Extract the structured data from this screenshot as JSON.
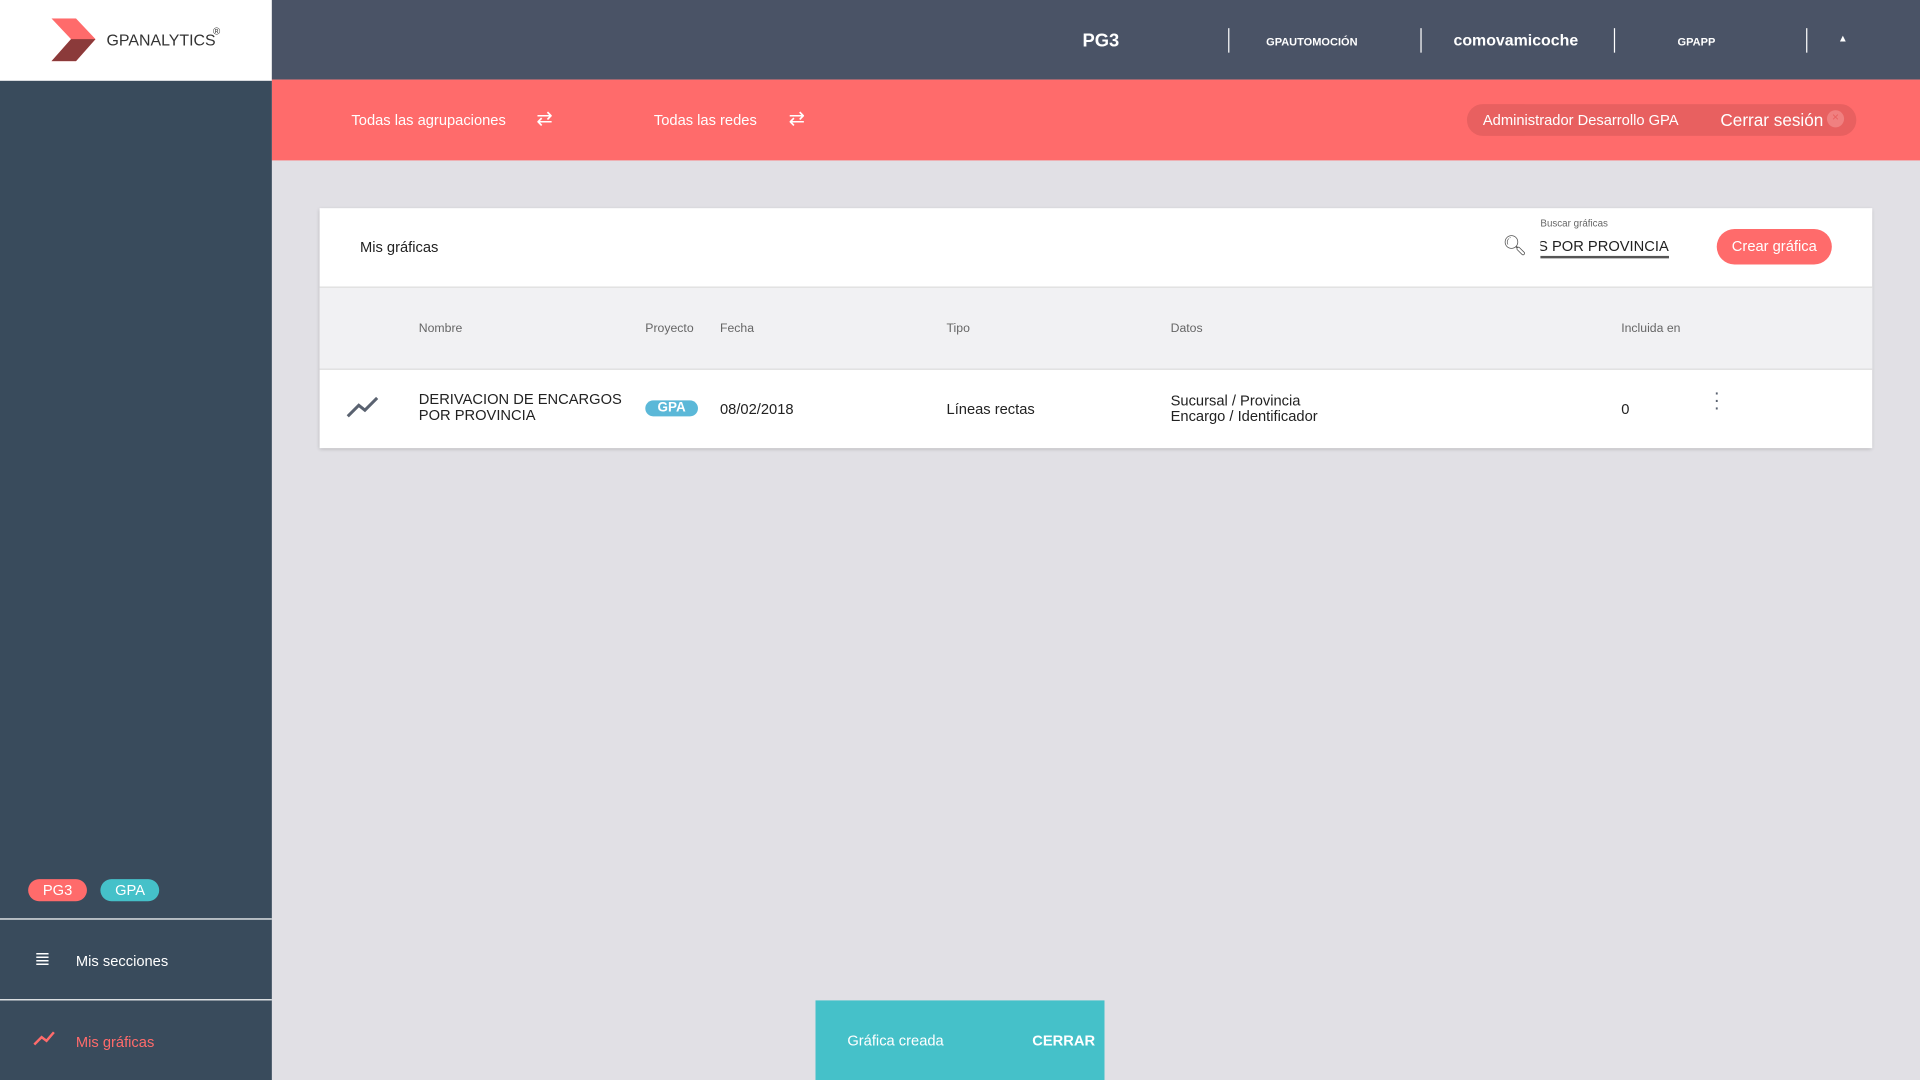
{
  "app": {
    "logo_text": "GPANALYTICS",
    "reg": "®"
  },
  "brands": [
    "PG3",
    "GPAUTOMOCIÓN",
    "comovamicoche",
    "GPAPP"
  ],
  "filters": {
    "agrupaciones": "Todas las agrupaciones",
    "redes": "Todas las redes"
  },
  "user": {
    "name": "Administrador Desarrollo GPA",
    "logout": "Cerrar sesión"
  },
  "sidebar": {
    "tags": [
      "PG3",
      "GPA"
    ],
    "items": [
      {
        "label": "Mis secciones",
        "icon": "list-icon"
      },
      {
        "label": "Mis gráficas",
        "icon": "line-chart-icon",
        "active": true
      }
    ]
  },
  "card": {
    "title": "Mis gráficas",
    "search_label": "Buscar gráficas",
    "search_value": "DERIVACION DE ENCARGOS POR PROVINCIA",
    "create": "Crear gráfica"
  },
  "table": {
    "headers": [
      "Nombre",
      "Proyecto",
      "Fecha",
      "Tipo",
      "Datos",
      "Incluida en"
    ],
    "rows": [
      {
        "nombre": "DERIVACION DE ENCARGOS POR PROVINCIA",
        "proyecto": "GPA",
        "fecha": "08/02/2018",
        "tipo": "Líneas rectas",
        "datos1": "Sucursal / Provincia",
        "datos2": "Encargo / Identificador",
        "incluida": "0"
      }
    ]
  },
  "toast": {
    "message": "Gráfica creada",
    "action": "CERRAR"
  },
  "colors": {
    "accent": "#ff6b6b",
    "teal": "#45c1c9",
    "sidebar": "#394b5c",
    "header": "#4a5366"
  }
}
